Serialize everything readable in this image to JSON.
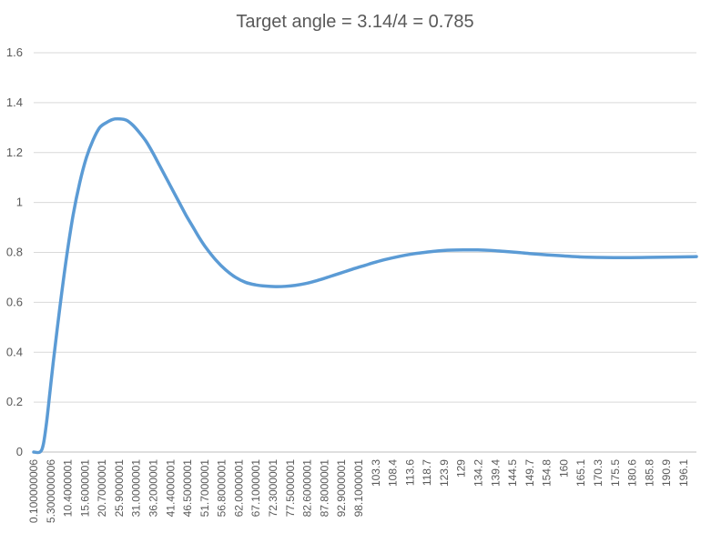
{
  "chart_data": {
    "type": "line",
    "title": "Target angle = 3.14/4 = 0.785",
    "xlabel": "",
    "ylabel": "",
    "ylim": [
      0,
      1.6
    ],
    "yticks": [
      0,
      0.2,
      0.4,
      0.6,
      0.8,
      1,
      1.2,
      1.4,
      1.6
    ],
    "ytick_labels": [
      "0",
      "0.2",
      "0.4",
      "0.6",
      "0.8",
      "1",
      "1.2",
      "1.4",
      "1.6"
    ],
    "xlim": [
      0.1,
      200
    ],
    "xtick_values": [
      0.100000006,
      5.300000006,
      10.4000001,
      15.6000001,
      20.7000001,
      25.9000001,
      31.0000001,
      36.2000001,
      41.4000001,
      46.5000001,
      51.7000001,
      56.8000001,
      62.0000001,
      67.1000001,
      72.3000001,
      77.5000001,
      82.6000001,
      87.8000001,
      92.9000001,
      98.1000001,
      103.3,
      108.4,
      113.6,
      118.7,
      123.9,
      129,
      134.2,
      139.4,
      144.5,
      149.7,
      154.8,
      160,
      165.1,
      170.3,
      175.5,
      180.6,
      185.8,
      190.9,
      196.1
    ],
    "xtick_labels": [
      "0.100000006",
      "5.300000006",
      "10.4000001",
      "15.6000001",
      "20.7000001",
      "25.9000001",
      "31.0000001",
      "36.2000001",
      "41.4000001",
      "46.5000001",
      "51.7000001",
      "56.8000001",
      "62.0000001",
      "67.1000001",
      "72.3000001",
      "77.5000001",
      "82.6000001",
      "87.8000001",
      "92.9000001",
      "98.1000001",
      "103.3",
      "108.4",
      "113.6",
      "118.7",
      "123.9",
      "129",
      "134.2",
      "139.4",
      "144.5",
      "149.7",
      "154.8",
      "160",
      "165.1",
      "170.3",
      "175.5",
      "180.6",
      "185.8",
      "190.9",
      "196.1"
    ],
    "grid": true,
    "legend": "none",
    "series": [
      {
        "color": "#5b9bd5",
        "x": [
          0.1,
          2,
          3,
          4,
          5,
          6,
          8,
          10,
          12,
          14,
          16,
          18,
          20,
          22,
          24,
          26,
          28,
          30,
          32,
          34,
          36,
          38,
          40,
          42,
          44,
          46,
          48,
          50,
          52,
          55,
          58,
          61,
          64,
          67,
          70,
          73,
          76,
          79,
          82,
          85,
          88,
          91,
          94,
          97,
          100,
          103,
          106,
          110,
          114,
          118,
          122,
          126,
          130,
          134,
          138,
          142,
          146,
          150,
          155,
          160,
          165,
          170,
          175,
          180,
          185,
          190,
          195,
          200
        ],
        "y": [
          0,
          0,
          0.03,
          0.12,
          0.24,
          0.36,
          0.58,
          0.78,
          0.95,
          1.08,
          1.18,
          1.25,
          1.3,
          1.32,
          1.333,
          1.335,
          1.33,
          1.31,
          1.28,
          1.245,
          1.2,
          1.15,
          1.1,
          1.05,
          1.0,
          0.95,
          0.905,
          0.86,
          0.82,
          0.77,
          0.73,
          0.7,
          0.68,
          0.67,
          0.665,
          0.663,
          0.664,
          0.668,
          0.675,
          0.685,
          0.697,
          0.71,
          0.723,
          0.736,
          0.748,
          0.76,
          0.771,
          0.783,
          0.793,
          0.8,
          0.806,
          0.809,
          0.81,
          0.81,
          0.808,
          0.804,
          0.8,
          0.795,
          0.79,
          0.786,
          0.782,
          0.78,
          0.779,
          0.779,
          0.78,
          0.781,
          0.782,
          0.783
        ]
      }
    ]
  }
}
